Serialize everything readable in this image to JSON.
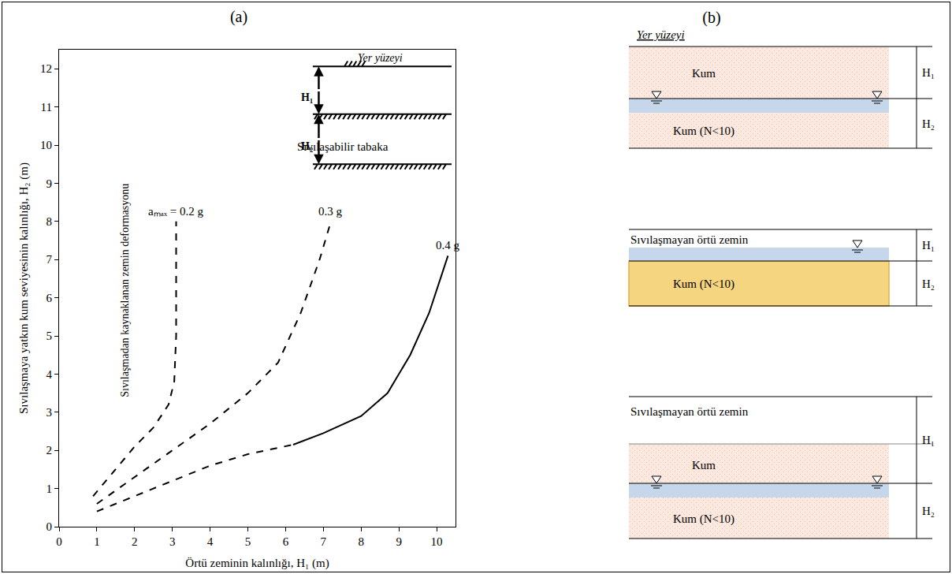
{
  "chart_data": {
    "type": "line",
    "title": "(a)",
    "x_label": "Örtü zeminin kalınlığı, H₁ (m)",
    "y_label": "Sıvılaşmaya yatkın kum seviyesinin kalınlığı, H₂ (m)",
    "xlim": [
      0,
      10.5
    ],
    "xticks": [
      0,
      1,
      2,
      3,
      4,
      5,
      6,
      7,
      8,
      9,
      10
    ],
    "ylim": [
      0,
      12.5
    ],
    "yticks": [
      0,
      1,
      2,
      3,
      4,
      5,
      6,
      7,
      8,
      9,
      10,
      11,
      12
    ],
    "grid": false,
    "series": [
      {
        "name": "aₘₐₓ = 0.2 g",
        "color": "#000000",
        "line_style": "dashed",
        "x": [
          0.9,
          1.5,
          2.0,
          2.5,
          2.9,
          3.05,
          3.1,
          3.1,
          3.1
        ],
        "values": [
          0.8,
          1.5,
          2.1,
          2.6,
          3.2,
          3.8,
          5.0,
          6.5,
          8.0
        ]
      },
      {
        "name": "0.3 g",
        "color": "#000000",
        "line_style": "dashed",
        "x": [
          1.0,
          2.0,
          3.0,
          4.0,
          5.0,
          5.8,
          6.4,
          6.9,
          7.2
        ],
        "values": [
          0.6,
          1.3,
          2.0,
          2.7,
          3.5,
          4.3,
          5.6,
          7.0,
          8.0
        ]
      },
      {
        "name": "0.4 g",
        "color": "#000000",
        "line_style": "dashed",
        "x": [
          1.0,
          2.0,
          3.0,
          4.0,
          5.0,
          6.2
        ],
        "values": [
          0.4,
          0.8,
          1.2,
          1.6,
          1.9,
          2.15
        ]
      },
      {
        "name": "0.4 g",
        "color": "#000000",
        "line_style": "solid",
        "x": [
          6.2,
          7.0,
          8.0,
          8.7,
          9.3,
          9.8,
          10.3
        ],
        "values": [
          2.15,
          2.45,
          2.9,
          3.5,
          4.5,
          5.6,
          7.1
        ]
      }
    ],
    "annotations": [
      {
        "text": "Sıvılaşmadan kaynaklanan zemin deformasyonu",
        "x": 1.75,
        "y": 6.2
      }
    ],
    "inset": {
      "ground": "Yer yüzeyi",
      "h1": "H₁",
      "h2": "H₂",
      "layer": "Sıvılaşabilir tabaka"
    }
  },
  "diagram": {
    "title": "(b)",
    "ground": "Yer yüzeyi",
    "h1": "H₁",
    "h2": "H₂",
    "profiles": [
      {
        "upper": "Kum",
        "lower": "Kum (N<10)"
      },
      {
        "cover": "Sıvılaşmayan örtü zemin",
        "lower": "Kum (N<10)"
      },
      {
        "cover": "Sıvılaşmayan örtü zemin",
        "upper": "Kum",
        "lower": "Kum (N<10)"
      }
    ]
  }
}
